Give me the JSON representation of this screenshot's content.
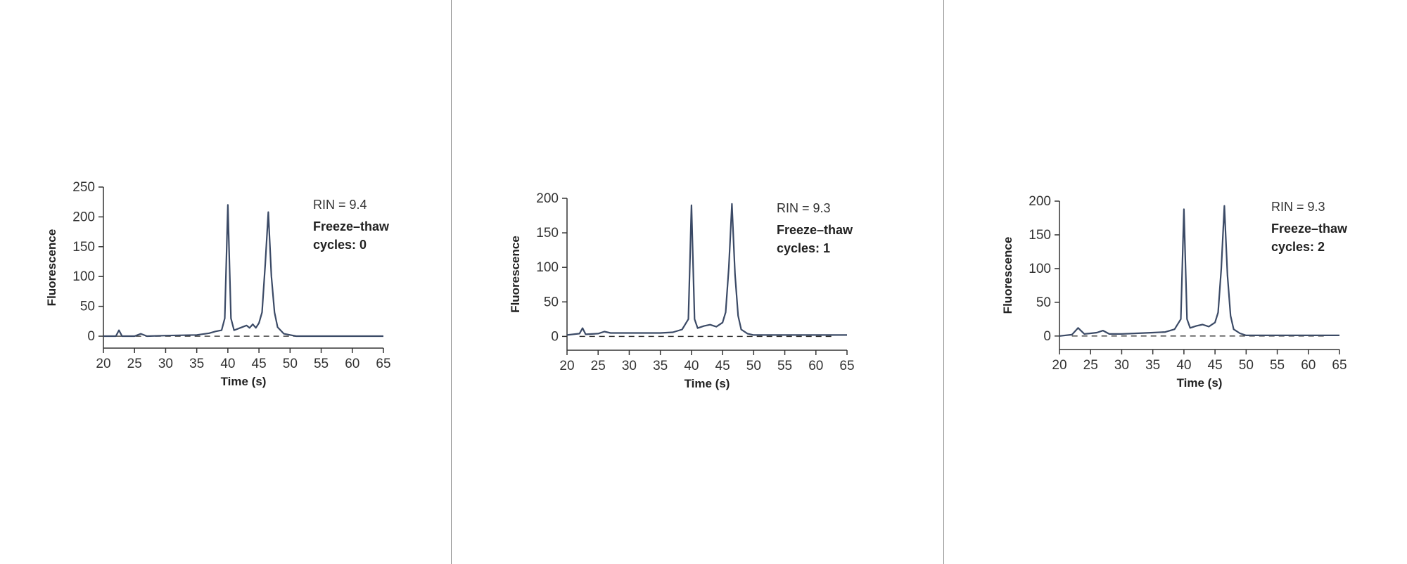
{
  "chart_data": [
    {
      "type": "line",
      "title": "",
      "xlabel": "Time (s)",
      "ylabel": "Fluorescence",
      "xlim": [
        20,
        65
      ],
      "ylim": [
        -20,
        250
      ],
      "xticks": [
        20,
        25,
        30,
        35,
        40,
        45,
        50,
        55,
        60,
        65
      ],
      "yticks": [
        0,
        50,
        100,
        150,
        200,
        250
      ],
      "rin_label": "RIN = 9.4",
      "cycles_line1": "Freeze–thaw",
      "cycles_line2": "cycles: 0",
      "baseline": 0,
      "series": [
        {
          "color": "#3b4a66",
          "x": [
            20,
            22,
            22.5,
            23,
            25,
            26,
            27,
            30,
            35,
            37,
            38,
            39,
            39.5,
            40,
            40.5,
            41,
            42,
            43,
            43.5,
            44,
            44.5,
            45,
            45.5,
            46,
            46.5,
            47,
            47.5,
            48,
            49,
            50,
            51,
            55,
            60,
            65
          ],
          "y": [
            0,
            0,
            10,
            0,
            0,
            4,
            0,
            1,
            2,
            5,
            8,
            10,
            30,
            220,
            30,
            10,
            14,
            18,
            14,
            20,
            14,
            22,
            40,
            120,
            208,
            100,
            40,
            15,
            4,
            2,
            0,
            0,
            0,
            0
          ]
        }
      ]
    },
    {
      "type": "line",
      "title": "",
      "xlabel": "Time (s)",
      "ylabel": "Fluorescence",
      "xlim": [
        20,
        65
      ],
      "ylim": [
        -20,
        200
      ],
      "xticks": [
        20,
        25,
        30,
        35,
        40,
        45,
        50,
        55,
        60,
        65
      ],
      "yticks": [
        0,
        50,
        100,
        150,
        200
      ],
      "rin_label": "RIN = 9.3",
      "cycles_line1": "Freeze–thaw",
      "cycles_line2": "cycles: 1",
      "baseline": 0,
      "series": [
        {
          "color": "#3b4a66",
          "x": [
            20,
            22,
            22.5,
            23,
            25,
            26,
            27,
            30,
            35,
            37,
            38.5,
            39.5,
            40,
            40.5,
            41,
            42,
            43,
            44,
            45,
            45.5,
            46,
            46.5,
            47,
            47.5,
            48,
            49,
            50,
            55,
            60,
            65
          ],
          "y": [
            2,
            4,
            12,
            3,
            4,
            7,
            5,
            5,
            5,
            6,
            10,
            25,
            190,
            25,
            12,
            15,
            17,
            14,
            20,
            35,
            100,
            192,
            90,
            30,
            10,
            4,
            2,
            2,
            2,
            2
          ]
        }
      ]
    },
    {
      "type": "line",
      "title": "",
      "xlabel": "Time (s)",
      "ylabel": "Fluorescence",
      "xlim": [
        20,
        65
      ],
      "ylim": [
        -20,
        200
      ],
      "xticks": [
        20,
        25,
        30,
        35,
        40,
        45,
        50,
        55,
        60,
        65
      ],
      "yticks": [
        0,
        50,
        100,
        150,
        200
      ],
      "rin_label": "RIN = 9.3",
      "cycles_line1": "Freeze–thaw",
      "cycles_line2": "cycles: 2",
      "baseline": 0,
      "series": [
        {
          "color": "#3b4a66",
          "x": [
            20,
            22,
            23,
            24,
            25,
            26,
            27,
            28,
            30,
            35,
            37,
            38.5,
            39.5,
            40,
            40.5,
            41,
            42,
            43,
            44,
            45,
            45.5,
            46,
            46.5,
            47,
            47.5,
            48,
            49,
            50,
            55,
            60,
            65
          ],
          "y": [
            0,
            2,
            12,
            3,
            4,
            5,
            8,
            3,
            3,
            5,
            6,
            10,
            25,
            188,
            25,
            12,
            15,
            17,
            14,
            20,
            35,
            100,
            193,
            90,
            30,
            10,
            4,
            1,
            1,
            1,
            1
          ]
        }
      ]
    }
  ]
}
